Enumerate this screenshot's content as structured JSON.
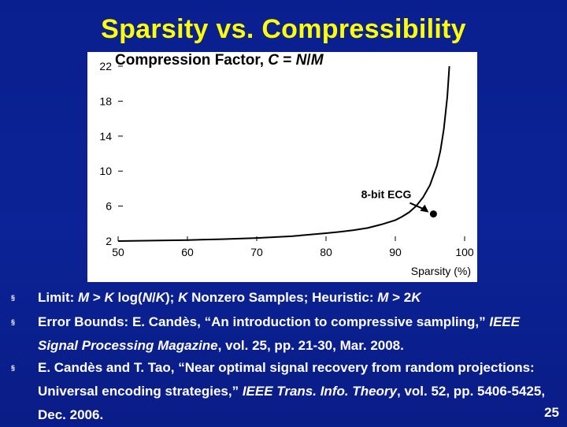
{
  "slide": {
    "title": "Sparsity vs. Compressibility",
    "page_number": "25"
  },
  "chart_data": {
    "type": "line",
    "title": "Compression Factor, C = N/M",
    "title_parts": {
      "prefix": "Compression Factor, ",
      "c": "C",
      "eq": " = ",
      "n": "N",
      "slash": "/",
      "m": "M"
    },
    "xlabel": "Sparsity (%)",
    "ylabel": "",
    "xlim": [
      50,
      100
    ],
    "ylim": [
      2,
      22
    ],
    "x_ticks": [
      "50",
      "60",
      "70",
      "80",
      "90",
      "100"
    ],
    "y_ticks": [
      "2",
      "6",
      "10",
      "14",
      "18",
      "22"
    ],
    "x_tick_values": [
      50,
      60,
      70,
      80,
      90,
      100
    ],
    "y_tick_values": [
      2,
      6,
      10,
      14,
      18,
      22
    ],
    "grid": false,
    "series": [
      {
        "x": [
          50,
          55,
          60,
          65,
          70,
          75,
          80,
          82,
          84,
          86,
          88,
          90,
          91,
          92,
          93,
          94,
          95,
          96,
          96.5,
          97,
          97.5,
          97.8
        ],
        "y": [
          2.0,
          2.05,
          2.12,
          2.22,
          2.35,
          2.55,
          2.9,
          3.05,
          3.25,
          3.5,
          3.9,
          4.4,
          4.8,
          5.3,
          6.0,
          7.0,
          8.4,
          10.6,
          12.3,
          14.8,
          18.5,
          22.0
        ]
      }
    ],
    "annotation": {
      "label": "8-bit ECG",
      "point": {
        "x": 95.5,
        "y": 6.0
      }
    }
  },
  "bullets": [
    {
      "segments": [
        {
          "t": "Limit: ",
          "i": false
        },
        {
          "t": "M",
          "i": true
        },
        {
          "t": " > ",
          "i": false
        },
        {
          "t": "K",
          "i": true
        },
        {
          "t": " log(",
          "i": false
        },
        {
          "t": "N",
          "i": true
        },
        {
          "t": "/",
          "i": false
        },
        {
          "t": "K",
          "i": true
        },
        {
          "t": "); ",
          "i": false
        },
        {
          "t": "K",
          "i": true
        },
        {
          "t": " Nonzero Samples; Heuristic: ",
          "i": false
        },
        {
          "t": "M",
          "i": true
        },
        {
          "t": " > 2",
          "i": false
        },
        {
          "t": "K",
          "i": true
        }
      ]
    },
    {
      "segments": [
        {
          "t": "Error Bounds: E. Candès, “An introduction to compressive sampling,” ",
          "i": false
        },
        {
          "t": "IEEE Signal Processing Magazine",
          "i": true
        },
        {
          "t": ", vol. 25, pp. 21-30, Mar. 2008.",
          "i": false
        }
      ]
    },
    {
      "segments": [
        {
          "t": "E. Candès and  T. Tao, “Near optimal signal recovery from random projections: Universal encoding strategies,” ",
          "i": false
        },
        {
          "t": "IEEE Trans. Info. Theory",
          "i": true
        },
        {
          "t": ", vol. 52, pp. 5406-5425, Dec. 2006.",
          "i": false
        }
      ]
    }
  ],
  "bullet_marker": "§",
  "colors": {
    "title": "#ffff00",
    "background": "#0a1f8f",
    "plot_bg": "#ffffff",
    "curve": "#000000"
  }
}
